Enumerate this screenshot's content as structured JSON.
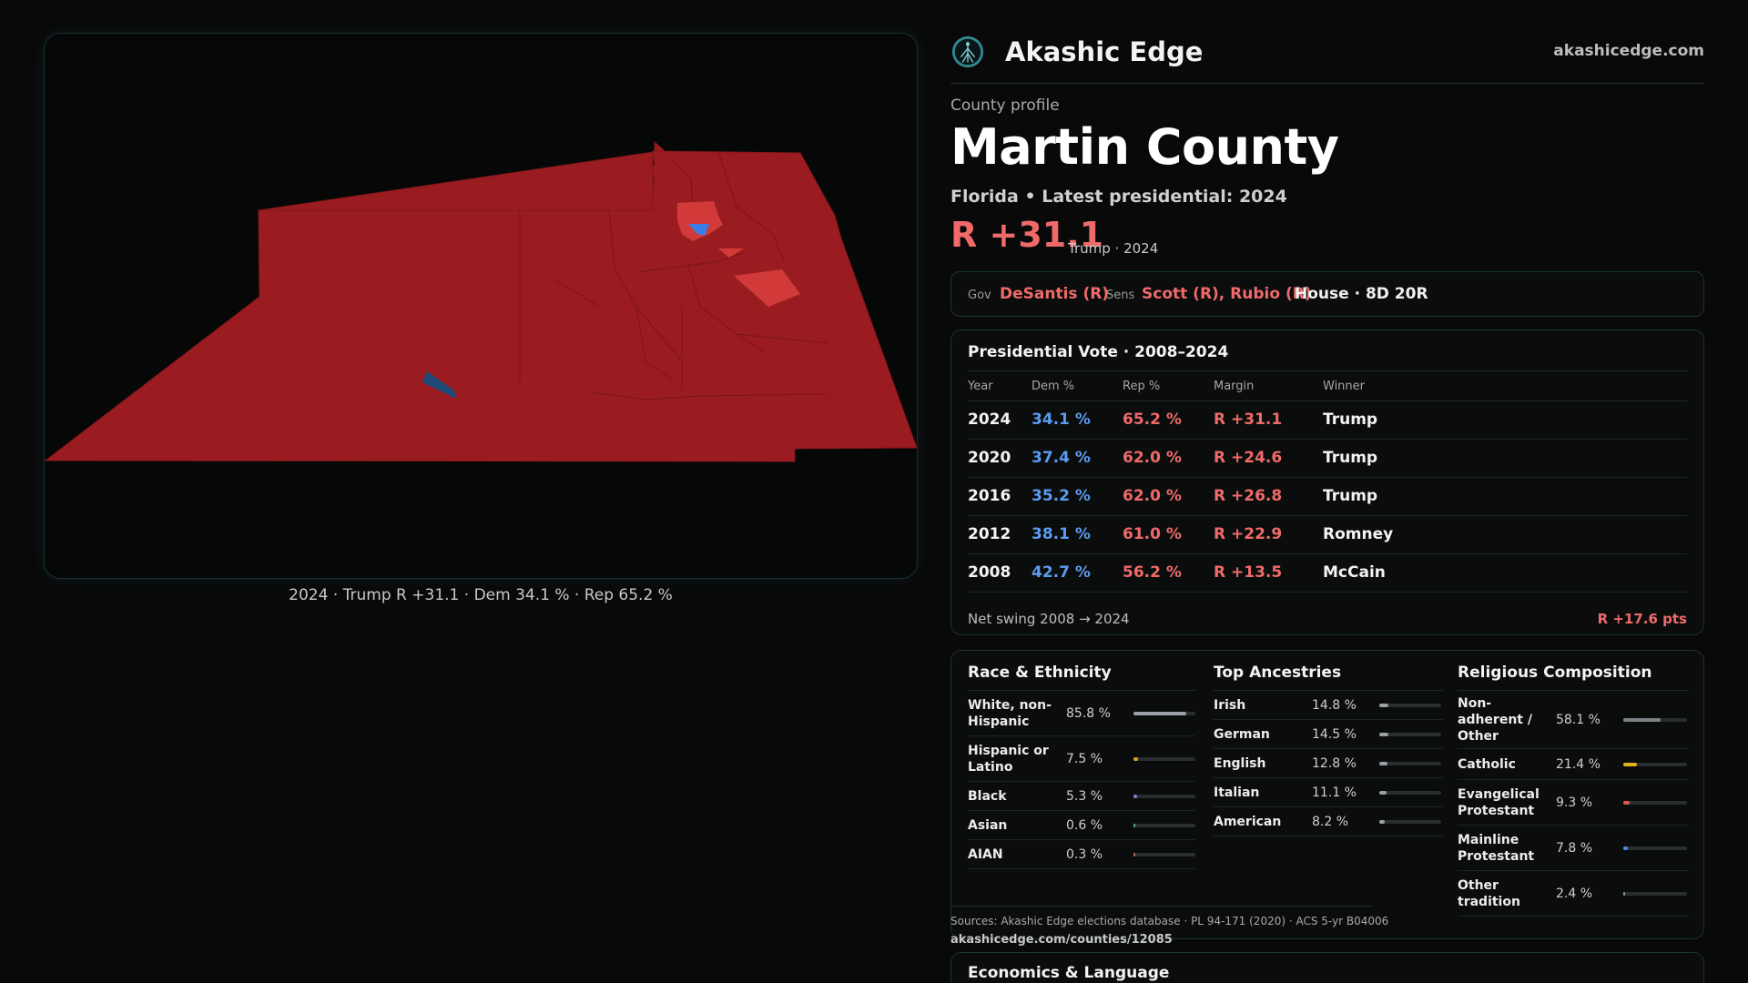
{
  "map": {
    "caption": "2024 · Trump  R +31.1 · Dem 34.1 % · Rep 65.2 %"
  },
  "header": {
    "brand": "Akashic Edge",
    "domain": "akashicedge.com",
    "logo_icon": "tree-of-life-icon"
  },
  "profile": {
    "eyebrow": "County profile",
    "county": "Martin County",
    "subtitle": "Florida • Latest presidential: 2024",
    "margin": "R +31.1",
    "margin_sub": "Trump · 2024"
  },
  "officials": {
    "gov_label": "Gov",
    "gov": "DeSantis (R)",
    "sens_label": "Sens",
    "sens": "Scott (R), Rubio (R)",
    "house": "House · 8D 20R"
  },
  "presidential": {
    "title": "Presidential Vote · 2008–2024",
    "columns": [
      "Year",
      "Dem %",
      "Rep %",
      "Margin",
      "Winner"
    ],
    "rows": [
      {
        "year": "2024",
        "dem": "34.1 %",
        "rep": "65.2 %",
        "margin": "R +31.1",
        "winner": "Trump"
      },
      {
        "year": "2020",
        "dem": "37.4 %",
        "rep": "62.0 %",
        "margin": "R +24.6",
        "winner": "Trump"
      },
      {
        "year": "2016",
        "dem": "35.2 %",
        "rep": "62.0 %",
        "margin": "R +26.8",
        "winner": "Trump"
      },
      {
        "year": "2012",
        "dem": "38.1 %",
        "rep": "61.0 %",
        "margin": "R +22.9",
        "winner": "Romney"
      },
      {
        "year": "2008",
        "dem": "42.7 %",
        "rep": "56.2 %",
        "margin": "R +13.5",
        "winner": "McCain"
      }
    ],
    "net_swing_label": "Net swing 2008 → 2024",
    "net_swing_value": "R +17.6 pts"
  },
  "race": {
    "title": "Race & Ethnicity",
    "items": [
      {
        "name": "White, non-\nHispanic",
        "value": "85.8 %",
        "pct": 85.8,
        "color": "#9aa0a6"
      },
      {
        "name": "Hispanic or\nLatino",
        "value": "7.5 %",
        "pct": 7.5,
        "color": "#d9a21a"
      },
      {
        "name": "Black",
        "value": "5.3 %",
        "pct": 5.3,
        "color": "#8a7be0"
      },
      {
        "name": "Asian",
        "value": "0.6 %",
        "pct": 0.6,
        "color": "#5ab0a0"
      },
      {
        "name": "AIAN",
        "value": "0.3 %",
        "pct": 0.3,
        "color": "#a07050"
      }
    ]
  },
  "ancestry": {
    "title": "Top Ancestries",
    "items": [
      {
        "name": "Irish",
        "value": "14.8 %",
        "pct": 14.8,
        "color": "#9aa0a6"
      },
      {
        "name": "German",
        "value": "14.5 %",
        "pct": 14.5,
        "color": "#9aa0a6"
      },
      {
        "name": "English",
        "value": "12.8 %",
        "pct": 12.8,
        "color": "#9aa0a6"
      },
      {
        "name": "Italian",
        "value": "11.1 %",
        "pct": 11.1,
        "color": "#9aa0a6"
      },
      {
        "name": "American",
        "value": "8.2 %",
        "pct": 8.2,
        "color": "#9aa0a6"
      }
    ]
  },
  "religion": {
    "title": "Religious Composition",
    "items": [
      {
        "name": "Non-\nadherent /\nOther",
        "value": "58.1 %",
        "pct": 58.1,
        "color": "#7c8288"
      },
      {
        "name": "Catholic",
        "value": "21.4 %",
        "pct": 21.4,
        "color": "#e0b21c"
      },
      {
        "name": "Evangelical\nProtestant",
        "value": "9.3 %",
        "pct": 9.3,
        "color": "#e05555"
      },
      {
        "name": "Mainline\nProtestant",
        "value": "7.8 %",
        "pct": 7.8,
        "color": "#4a8ee0"
      },
      {
        "name": "Other\ntradition",
        "value": "2.4 %",
        "pct": 2.4,
        "color": "#9aa0a6"
      }
    ]
  },
  "sources": {
    "text": "Sources: Akashic Edge elections database · PL 94-171 (2020) · ACS 5-yr B04006",
    "link": "akashicedge.com/counties/12085"
  },
  "economics": {
    "title": "Economics & Language"
  },
  "colors": {
    "rep": "#f06a6a",
    "dem": "#5b9cf0",
    "map_fill": "#9b1c20",
    "accent": "#1a3438"
  }
}
